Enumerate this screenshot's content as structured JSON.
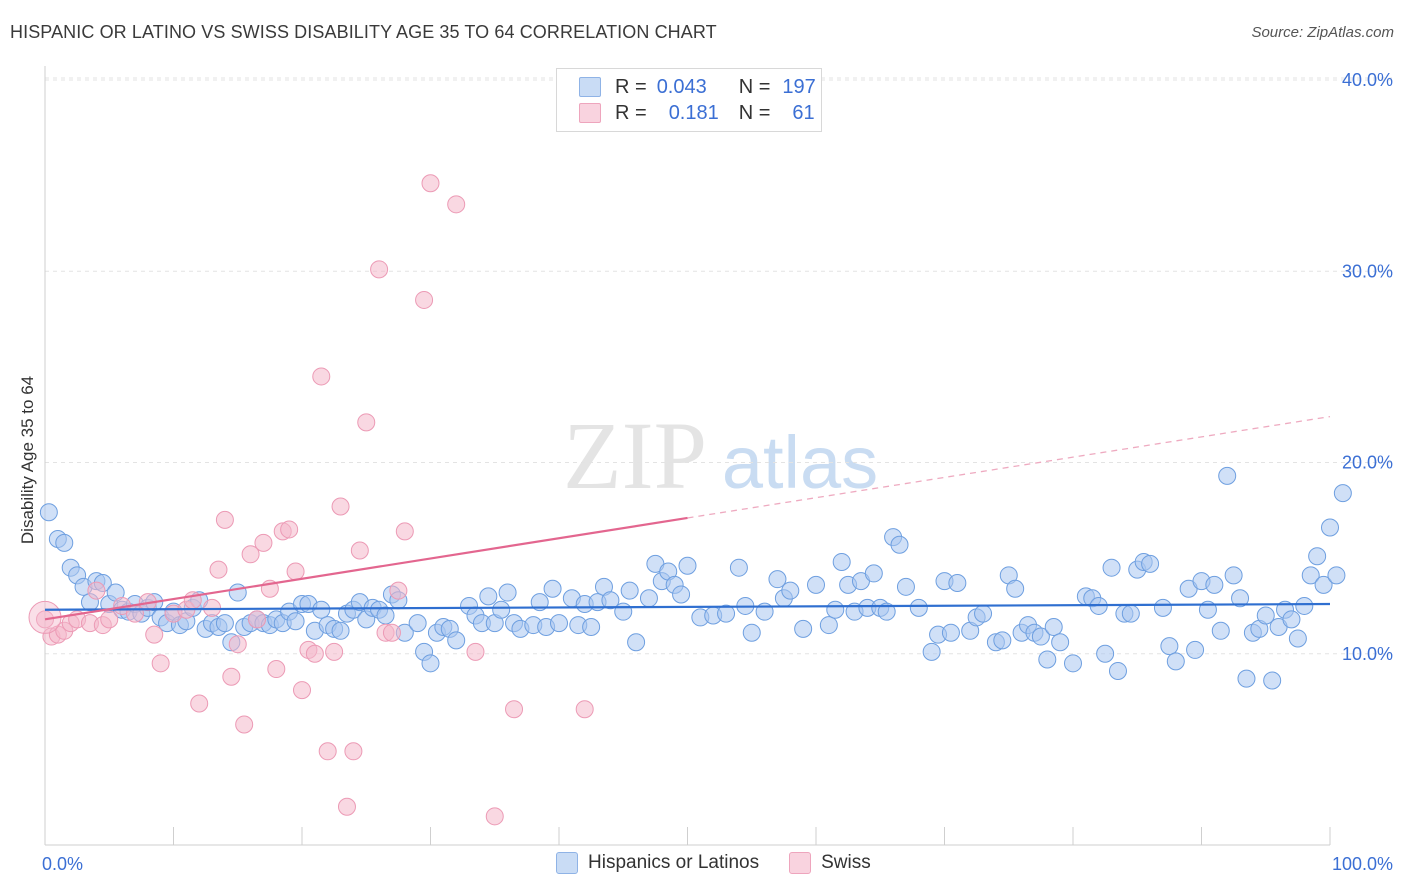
{
  "header": {
    "title": "HISPANIC OR LATINO VS SWISS DISABILITY AGE 35 TO 64 CORRELATION CHART",
    "source": "Source: ZipAtlas.com"
  },
  "legend": {
    "rows": [
      {
        "r_label": "R =",
        "r_value": "0.043",
        "n_label": "N =",
        "n_value": "197",
        "color": "#a9c7f0"
      },
      {
        "r_label": "R =",
        "r_value": "0.181",
        "n_label": "N =",
        "n_value": "61",
        "color": "#f4b8cb"
      }
    ]
  },
  "bottom_legend": [
    {
      "label": "Hispanics or Latinos",
      "color": "#a9c7f0"
    },
    {
      "label": "Swiss",
      "color": "#f4b8cb"
    }
  ],
  "watermark": {
    "zip": "ZIP",
    "atlas": "atlas"
  },
  "chart_data": {
    "type": "scatter",
    "xlabel": "",
    "ylabel": "Disability Age 35 to 64",
    "xlim": [
      0,
      100
    ],
    "ylim": [
      0,
      40
    ],
    "x_tick_labels": [
      {
        "value": 0,
        "label": "0.0%"
      },
      {
        "value": 100,
        "label": "100.0%"
      }
    ],
    "y_tick_labels": [
      {
        "value": 10,
        "label": "10.0%"
      },
      {
        "value": 20,
        "label": "20.0%"
      },
      {
        "value": 30,
        "label": "30.0%"
      },
      {
        "value": 40,
        "label": "40.0%"
      }
    ],
    "grid": true,
    "colors": {
      "blue": "#4a86d8",
      "blue_fill": "#a9c7f0",
      "pink": "#e3668f",
      "pink_fill": "#f4b8cb",
      "axis_label": "#3b6fd4"
    },
    "series": [
      {
        "name": "Hispanics or Latinos",
        "trend": {
          "x": [
            0,
            100
          ],
          "y": [
            12.3,
            12.6
          ],
          "dashed_from": null
        },
        "points": [
          [
            0.3,
            17.4
          ],
          [
            1,
            16
          ],
          [
            1.5,
            15.8
          ],
          [
            2,
            14.5
          ],
          [
            2.5,
            14.1
          ],
          [
            3,
            13.5
          ],
          [
            3.5,
            12.7
          ],
          [
            4,
            13.8
          ],
          [
            4.5,
            13.7
          ],
          [
            5,
            12.6
          ],
          [
            5.5,
            13.2
          ],
          [
            6,
            12.3
          ],
          [
            6.5,
            12.2
          ],
          [
            7,
            12.6
          ],
          [
            7.5,
            12.1
          ],
          [
            8,
            12.4
          ],
          [
            8.5,
            12.7
          ],
          [
            9,
            11.9
          ],
          [
            9.5,
            11.6
          ],
          [
            10,
            12.2
          ],
          [
            10.5,
            11.5
          ],
          [
            11,
            11.7
          ],
          [
            11.5,
            12.4
          ],
          [
            12,
            12.8
          ],
          [
            12.5,
            11.3
          ],
          [
            13,
            11.6
          ],
          [
            13.5,
            11.4
          ],
          [
            14,
            11.6
          ],
          [
            14.5,
            10.6
          ],
          [
            15,
            13.2
          ],
          [
            15.5,
            11.4
          ],
          [
            16,
            11.6
          ],
          [
            16.5,
            11.8
          ],
          [
            17,
            11.6
          ],
          [
            17.5,
            11.5
          ],
          [
            18,
            11.8
          ],
          [
            18.5,
            11.6
          ],
          [
            19,
            12.2
          ],
          [
            19.5,
            11.7
          ],
          [
            20,
            12.6
          ],
          [
            20.5,
            12.6
          ],
          [
            21,
            11.2
          ],
          [
            21.5,
            12.3
          ],
          [
            22,
            11.5
          ],
          [
            22.5,
            11.3
          ],
          [
            23,
            11.2
          ],
          [
            23.5,
            12.1
          ],
          [
            24,
            12.3
          ],
          [
            24.5,
            12.7
          ],
          [
            25,
            11.8
          ],
          [
            25.5,
            12.4
          ],
          [
            26,
            12.3
          ],
          [
            26.5,
            12
          ],
          [
            27,
            13.1
          ],
          [
            27.5,
            12.8
          ],
          [
            28,
            11.1
          ],
          [
            29,
            11.6
          ],
          [
            29.5,
            10.1
          ],
          [
            30,
            9.5
          ],
          [
            30.5,
            11.1
          ],
          [
            31,
            11.4
          ],
          [
            31.5,
            11.3
          ],
          [
            32,
            10.7
          ],
          [
            33,
            12.5
          ],
          [
            33.5,
            12
          ],
          [
            34,
            11.6
          ],
          [
            34.5,
            13
          ],
          [
            35,
            11.6
          ],
          [
            35.5,
            12.3
          ],
          [
            36,
            13.2
          ],
          [
            36.5,
            11.6
          ],
          [
            37,
            11.3
          ],
          [
            38,
            11.5
          ],
          [
            38.5,
            12.7
          ],
          [
            39,
            11.4
          ],
          [
            39.5,
            13.4
          ],
          [
            40,
            11.6
          ],
          [
            41,
            12.9
          ],
          [
            41.5,
            11.5
          ],
          [
            42,
            12.6
          ],
          [
            42.5,
            11.4
          ],
          [
            43,
            12.7
          ],
          [
            43.5,
            13.5
          ],
          [
            44,
            12.8
          ],
          [
            45,
            12.2
          ],
          [
            45.5,
            13.3
          ],
          [
            46,
            10.6
          ],
          [
            47,
            12.9
          ],
          [
            47.5,
            14.7
          ],
          [
            48,
            13.8
          ],
          [
            48.5,
            14.3
          ],
          [
            49,
            13.6
          ],
          [
            49.5,
            13.1
          ],
          [
            50,
            14.6
          ],
          [
            51,
            11.9
          ],
          [
            52,
            12
          ],
          [
            53,
            12.1
          ],
          [
            54,
            14.5
          ],
          [
            54.5,
            12.5
          ],
          [
            55,
            11.1
          ],
          [
            56,
            12.2
          ],
          [
            57,
            13.9
          ],
          [
            57.5,
            12.9
          ],
          [
            58,
            13.3
          ],
          [
            59,
            11.3
          ],
          [
            60,
            13.6
          ],
          [
            61,
            11.5
          ],
          [
            61.5,
            12.3
          ],
          [
            62,
            14.8
          ],
          [
            62.5,
            13.6
          ],
          [
            63,
            12.2
          ],
          [
            63.5,
            13.8
          ],
          [
            64,
            12.4
          ],
          [
            64.5,
            14.2
          ],
          [
            65,
            12.4
          ],
          [
            65.5,
            12.2
          ],
          [
            66,
            16.1
          ],
          [
            66.5,
            15.7
          ],
          [
            67,
            13.5
          ],
          [
            68,
            12.4
          ],
          [
            69,
            10.1
          ],
          [
            69.5,
            11
          ],
          [
            70,
            13.8
          ],
          [
            70.5,
            11.1
          ],
          [
            71,
            13.7
          ],
          [
            72,
            11.2
          ],
          [
            72.5,
            11.9
          ],
          [
            73,
            12.1
          ],
          [
            74,
            10.6
          ],
          [
            74.5,
            10.7
          ],
          [
            75,
            14.1
          ],
          [
            75.5,
            13.4
          ],
          [
            76,
            11.1
          ],
          [
            76.5,
            11.5
          ],
          [
            77,
            11.1
          ],
          [
            77.5,
            10.9
          ],
          [
            78,
            9.7
          ],
          [
            78.5,
            11.4
          ],
          [
            79,
            10.6
          ],
          [
            80,
            9.5
          ],
          [
            81,
            13
          ],
          [
            81.5,
            12.9
          ],
          [
            82,
            12.5
          ],
          [
            82.5,
            10
          ],
          [
            83,
            14.5
          ],
          [
            83.5,
            9.1
          ],
          [
            84,
            12.1
          ],
          [
            84.5,
            12.1
          ],
          [
            85,
            14.4
          ],
          [
            85.5,
            14.8
          ],
          [
            86,
            14.7
          ],
          [
            87,
            12.4
          ],
          [
            87.5,
            10.4
          ],
          [
            88,
            9.6
          ],
          [
            89,
            13.4
          ],
          [
            89.5,
            10.2
          ],
          [
            90,
            13.8
          ],
          [
            90.5,
            12.3
          ],
          [
            91,
            13.6
          ],
          [
            91.5,
            11.2
          ],
          [
            92,
            19.3
          ],
          [
            92.5,
            14.1
          ],
          [
            93,
            12.9
          ],
          [
            93.5,
            8.7
          ],
          [
            94,
            11.1
          ],
          [
            94.5,
            11.3
          ],
          [
            95,
            12
          ],
          [
            95.5,
            8.6
          ],
          [
            96,
            11.4
          ],
          [
            96.5,
            12.3
          ],
          [
            97,
            11.8
          ],
          [
            97.5,
            10.8
          ],
          [
            98,
            12.5
          ],
          [
            98.5,
            14.1
          ],
          [
            99,
            15.1
          ],
          [
            99.5,
            13.6
          ],
          [
            100,
            16.6
          ],
          [
            100.5,
            14.1
          ],
          [
            101,
            18.4
          ]
        ]
      },
      {
        "name": "Swiss",
        "trend": {
          "x": [
            0,
            100
          ],
          "y": [
            11.8,
            22.4
          ],
          "dashed_from": 50
        },
        "points": [
          [
            0,
            11.8
          ],
          [
            0.5,
            10.9
          ],
          [
            1,
            11
          ],
          [
            1.5,
            11.2
          ],
          [
            2,
            11.6
          ],
          [
            2.5,
            11.8
          ],
          [
            3.5,
            11.6
          ],
          [
            4,
            13.3
          ],
          [
            4.5,
            11.5
          ],
          [
            5,
            11.8
          ],
          [
            6,
            12.5
          ],
          [
            7,
            12.1
          ],
          [
            8,
            12.7
          ],
          [
            8.5,
            11
          ],
          [
            9,
            9.5
          ],
          [
            10,
            12.1
          ],
          [
            11,
            12.3
          ],
          [
            11.5,
            12.8
          ],
          [
            12,
            7.4
          ],
          [
            13,
            12.4
          ],
          [
            13.5,
            14.4
          ],
          [
            14,
            17
          ],
          [
            14.5,
            8.8
          ],
          [
            15,
            10.5
          ],
          [
            15.5,
            6.3
          ],
          [
            16,
            15.2
          ],
          [
            16.5,
            11.8
          ],
          [
            17,
            15.8
          ],
          [
            17.5,
            13.4
          ],
          [
            18,
            9.2
          ],
          [
            18.5,
            16.4
          ],
          [
            19,
            16.5
          ],
          [
            19.5,
            14.3
          ],
          [
            20,
            8.1
          ],
          [
            20.5,
            10.2
          ],
          [
            21,
            10
          ],
          [
            21.5,
            24.5
          ],
          [
            22,
            4.9
          ],
          [
            22.5,
            10.1
          ],
          [
            23,
            17.7
          ],
          [
            23.5,
            2
          ],
          [
            24,
            4.9
          ],
          [
            24.5,
            15.4
          ],
          [
            25,
            22.1
          ],
          [
            26,
            30.1
          ],
          [
            26.5,
            11.1
          ],
          [
            27,
            11.1
          ],
          [
            27.5,
            13.3
          ],
          [
            28,
            16.4
          ],
          [
            29.5,
            28.5
          ],
          [
            30,
            34.6
          ],
          [
            32,
            33.5
          ],
          [
            33.5,
            10.1
          ],
          [
            35,
            1.5
          ],
          [
            36.5,
            7.1
          ],
          [
            42,
            7.1
          ]
        ]
      }
    ]
  }
}
